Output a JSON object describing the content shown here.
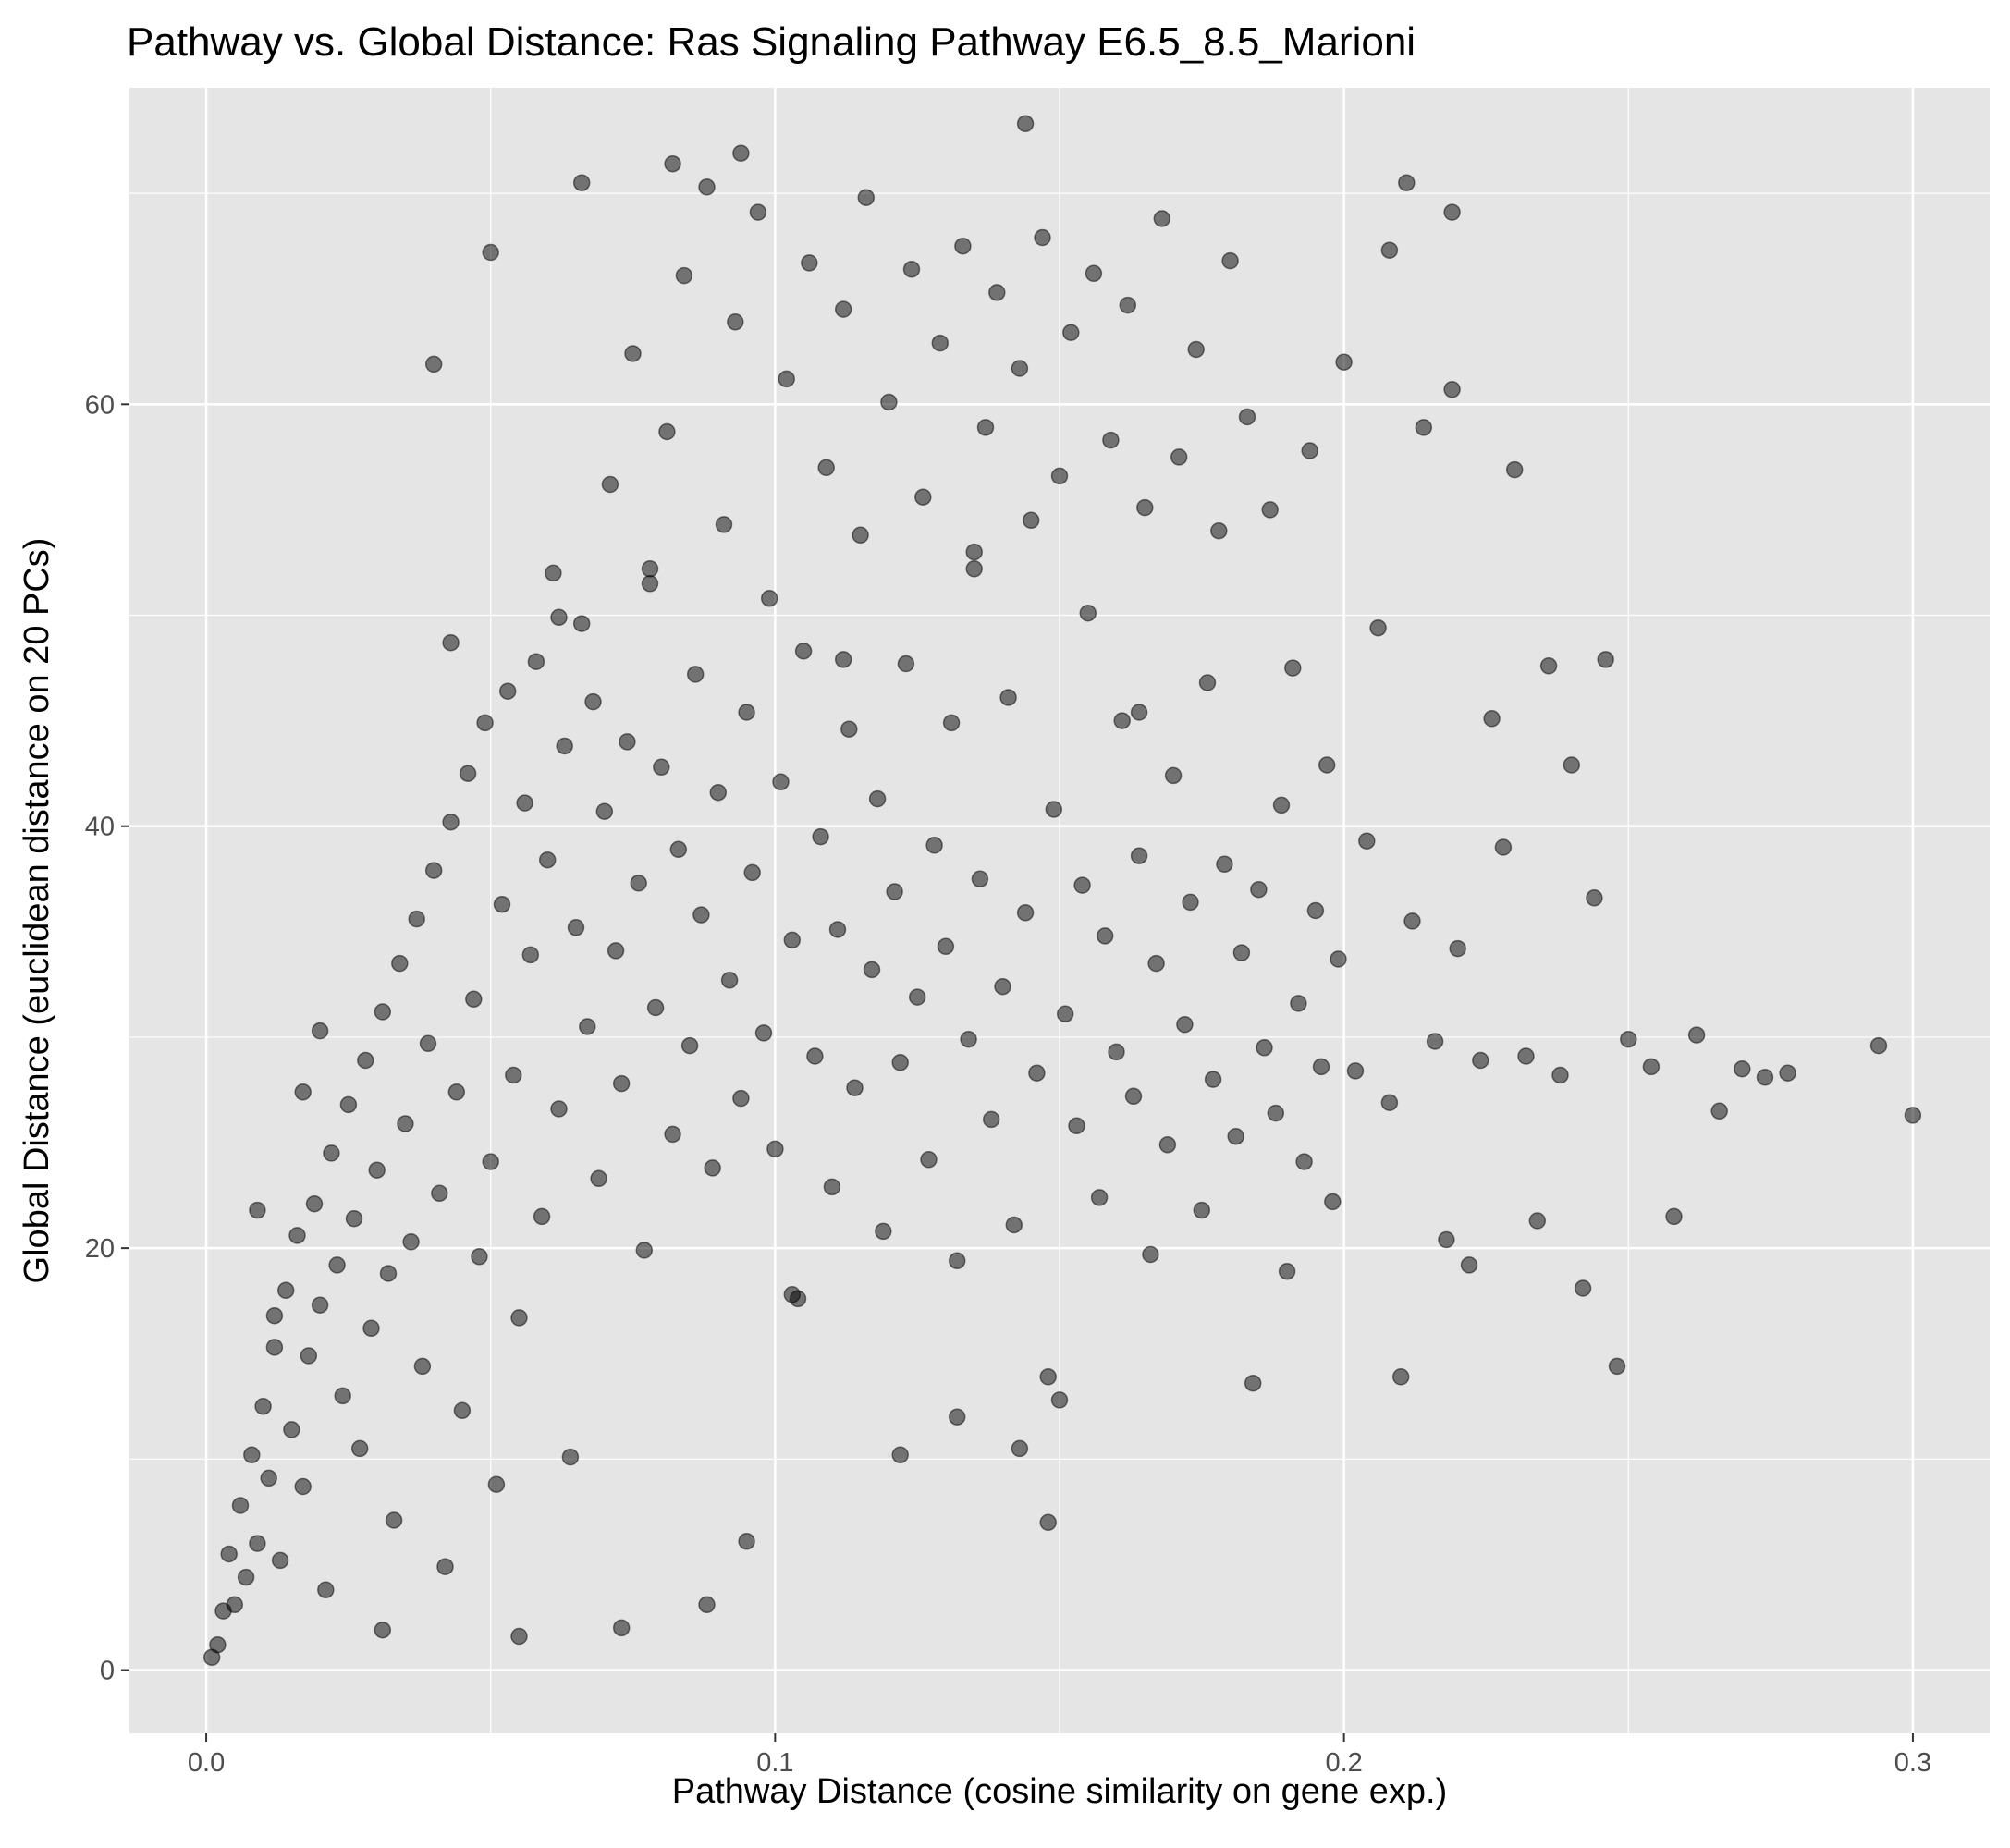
{
  "chart_data": {
    "type": "scatter",
    "title": "Pathway vs. Global Distance: Ras Signaling Pathway  E6.5_8.5_Marioni",
    "xlabel": "Pathway Distance (cosine similarity on gene exp.)",
    "ylabel": "Global Distance (euclidean distance on 20 PCs)",
    "xlim": [
      -0.0135,
      0.3135
    ],
    "ylim": [
      -3.0,
      75.0
    ],
    "x_ticks": [
      0.0,
      0.1,
      0.2,
      0.3
    ],
    "x_tick_labels": [
      "0.0",
      "0.1",
      "0.2",
      "0.3"
    ],
    "y_ticks": [
      0,
      20,
      40,
      60
    ],
    "y_tick_labels": [
      "0",
      "20",
      "40",
      "60"
    ],
    "x_minor_ticks": [
      0.05,
      0.15,
      0.25
    ],
    "y_minor_ticks": [
      10,
      30,
      50,
      70
    ],
    "grid": true,
    "legend": "none",
    "colors": {
      "panel_background": "#e5e5e5",
      "grid_line": "#ffffff",
      "point_fill": "#000000",
      "point_opacity": 0.5
    },
    "series": [
      {
        "points": [
          [
            0.001,
            0.6
          ],
          [
            0.002,
            1.2
          ],
          [
            0.003,
            2.8
          ],
          [
            0.004,
            5.5
          ],
          [
            0.005,
            3.1
          ],
          [
            0.006,
            7.8
          ],
          [
            0.007,
            4.4
          ],
          [
            0.008,
            10.2
          ],
          [
            0.009,
            6.0
          ],
          [
            0.01,
            12.5
          ],
          [
            0.011,
            9.1
          ],
          [
            0.012,
            15.3
          ],
          [
            0.013,
            5.2
          ],
          [
            0.014,
            18.0
          ],
          [
            0.015,
            11.4
          ],
          [
            0.016,
            20.6
          ],
          [
            0.017,
            8.7
          ],
          [
            0.018,
            14.9
          ],
          [
            0.019,
            22.1
          ],
          [
            0.02,
            17.3
          ],
          [
            0.021,
            3.8
          ],
          [
            0.022,
            24.5
          ],
          [
            0.023,
            19.2
          ],
          [
            0.024,
            13.0
          ],
          [
            0.025,
            26.8
          ],
          [
            0.026,
            21.4
          ],
          [
            0.027,
            10.5
          ],
          [
            0.028,
            28.9
          ],
          [
            0.029,
            16.2
          ],
          [
            0.03,
            23.7
          ],
          [
            0.031,
            31.2
          ],
          [
            0.032,
            18.8
          ],
          [
            0.033,
            7.1
          ],
          [
            0.034,
            33.5
          ],
          [
            0.035,
            25.9
          ],
          [
            0.036,
            20.3
          ],
          [
            0.037,
            35.6
          ],
          [
            0.038,
            14.4
          ],
          [
            0.039,
            29.7
          ],
          [
            0.04,
            37.9
          ],
          [
            0.041,
            22.6
          ],
          [
            0.042,
            4.9
          ],
          [
            0.043,
            40.2
          ],
          [
            0.044,
            27.4
          ],
          [
            0.045,
            12.3
          ],
          [
            0.046,
            42.5
          ],
          [
            0.047,
            31.8
          ],
          [
            0.048,
            19.6
          ],
          [
            0.049,
            44.9
          ],
          [
            0.05,
            24.1
          ],
          [
            0.051,
            8.8
          ],
          [
            0.052,
            36.3
          ],
          [
            0.053,
            46.4
          ],
          [
            0.054,
            28.2
          ],
          [
            0.055,
            16.7
          ],
          [
            0.056,
            41.1
          ],
          [
            0.057,
            33.9
          ],
          [
            0.058,
            47.8
          ],
          [
            0.059,
            21.5
          ],
          [
            0.06,
            38.4
          ],
          [
            0.061,
            52.0
          ],
          [
            0.062,
            26.6
          ],
          [
            0.063,
            43.8
          ],
          [
            0.064,
            10.1
          ],
          [
            0.065,
            35.2
          ],
          [
            0.066,
            49.6
          ],
          [
            0.067,
            30.5
          ],
          [
            0.068,
            45.9
          ],
          [
            0.069,
            23.3
          ],
          [
            0.07,
            40.7
          ],
          [
            0.071,
            56.2
          ],
          [
            0.072,
            34.1
          ],
          [
            0.073,
            27.8
          ],
          [
            0.074,
            44.0
          ],
          [
            0.075,
            62.4
          ],
          [
            0.076,
            37.3
          ],
          [
            0.077,
            19.9
          ],
          [
            0.078,
            51.5
          ],
          [
            0.079,
            31.4
          ],
          [
            0.08,
            42.8
          ],
          [
            0.081,
            58.7
          ],
          [
            0.082,
            25.4
          ],
          [
            0.083,
            38.9
          ],
          [
            0.084,
            66.1
          ],
          [
            0.085,
            29.6
          ],
          [
            0.086,
            47.2
          ],
          [
            0.087,
            35.8
          ],
          [
            0.088,
            70.3
          ],
          [
            0.089,
            23.8
          ],
          [
            0.09,
            41.6
          ],
          [
            0.091,
            54.3
          ],
          [
            0.092,
            32.7
          ],
          [
            0.093,
            63.9
          ],
          [
            0.094,
            27.1
          ],
          [
            0.095,
            45.4
          ],
          [
            0.096,
            37.8
          ],
          [
            0.097,
            69.1
          ],
          [
            0.098,
            30.2
          ],
          [
            0.099,
            50.8
          ],
          [
            0.1,
            24.7
          ],
          [
            0.101,
            42.1
          ],
          [
            0.102,
            61.2
          ],
          [
            0.103,
            34.6
          ],
          [
            0.104,
            17.6
          ],
          [
            0.105,
            48.3
          ],
          [
            0.106,
            66.7
          ],
          [
            0.107,
            29.1
          ],
          [
            0.108,
            39.5
          ],
          [
            0.109,
            57.0
          ],
          [
            0.11,
            22.9
          ],
          [
            0.111,
            35.1
          ],
          [
            0.112,
            64.5
          ],
          [
            0.113,
            44.6
          ],
          [
            0.114,
            27.6
          ],
          [
            0.115,
            53.8
          ],
          [
            0.116,
            69.8
          ],
          [
            0.117,
            33.2
          ],
          [
            0.118,
            41.3
          ],
          [
            0.119,
            20.8
          ],
          [
            0.12,
            60.1
          ],
          [
            0.121,
            36.9
          ],
          [
            0.122,
            28.8
          ],
          [
            0.123,
            47.7
          ],
          [
            0.124,
            66.4
          ],
          [
            0.125,
            31.9
          ],
          [
            0.126,
            55.6
          ],
          [
            0.127,
            24.2
          ],
          [
            0.128,
            39.1
          ],
          [
            0.129,
            62.9
          ],
          [
            0.13,
            34.3
          ],
          [
            0.131,
            44.9
          ],
          [
            0.132,
            19.4
          ],
          [
            0.133,
            67.5
          ],
          [
            0.134,
            29.9
          ],
          [
            0.135,
            52.2
          ],
          [
            0.136,
            37.5
          ],
          [
            0.137,
            58.9
          ],
          [
            0.138,
            26.1
          ],
          [
            0.139,
            65.3
          ],
          [
            0.14,
            32.4
          ],
          [
            0.141,
            46.1
          ],
          [
            0.142,
            21.1
          ],
          [
            0.143,
            61.7
          ],
          [
            0.144,
            35.9
          ],
          [
            0.145,
            54.5
          ],
          [
            0.146,
            28.3
          ],
          [
            0.147,
            67.9
          ],
          [
            0.148,
            13.9
          ],
          [
            0.149,
            40.8
          ],
          [
            0.15,
            56.6
          ],
          [
            0.151,
            31.1
          ],
          [
            0.152,
            63.4
          ],
          [
            0.153,
            25.8
          ],
          [
            0.154,
            37.2
          ],
          [
            0.155,
            50.1
          ],
          [
            0.156,
            66.2
          ],
          [
            0.157,
            22.4
          ],
          [
            0.158,
            34.8
          ],
          [
            0.159,
            58.3
          ],
          [
            0.16,
            29.3
          ],
          [
            0.161,
            45.0
          ],
          [
            0.162,
            64.7
          ],
          [
            0.163,
            27.2
          ],
          [
            0.164,
            38.6
          ],
          [
            0.165,
            55.1
          ],
          [
            0.166,
            19.7
          ],
          [
            0.167,
            33.5
          ],
          [
            0.168,
            68.8
          ],
          [
            0.169,
            24.9
          ],
          [
            0.17,
            42.4
          ],
          [
            0.171,
            57.5
          ],
          [
            0.172,
            30.6
          ],
          [
            0.173,
            36.4
          ],
          [
            0.174,
            62.6
          ],
          [
            0.175,
            21.8
          ],
          [
            0.176,
            46.8
          ],
          [
            0.177,
            28.0
          ],
          [
            0.178,
            54.0
          ],
          [
            0.179,
            38.2
          ],
          [
            0.18,
            66.8
          ],
          [
            0.181,
            25.3
          ],
          [
            0.182,
            34.0
          ],
          [
            0.183,
            59.4
          ],
          [
            0.184,
            13.6
          ],
          [
            0.185,
            37.0
          ],
          [
            0.186,
            29.5
          ],
          [
            0.187,
            55.0
          ],
          [
            0.188,
            26.4
          ],
          [
            0.189,
            41.0
          ],
          [
            0.19,
            18.9
          ],
          [
            0.191,
            47.5
          ],
          [
            0.192,
            31.6
          ],
          [
            0.193,
            24.1
          ],
          [
            0.194,
            57.8
          ],
          [
            0.195,
            36.0
          ],
          [
            0.196,
            28.6
          ],
          [
            0.197,
            42.9
          ],
          [
            0.198,
            22.2
          ],
          [
            0.199,
            33.7
          ],
          [
            0.2,
            62.0
          ],
          [
            0.202,
            28.4
          ],
          [
            0.204,
            39.3
          ],
          [
            0.206,
            49.4
          ],
          [
            0.208,
            26.9
          ],
          [
            0.21,
            13.9
          ],
          [
            0.212,
            35.5
          ],
          [
            0.214,
            58.9
          ],
          [
            0.216,
            29.8
          ],
          [
            0.218,
            20.4
          ],
          [
            0.219,
            60.7
          ],
          [
            0.22,
            34.2
          ],
          [
            0.222,
            19.2
          ],
          [
            0.224,
            28.9
          ],
          [
            0.226,
            45.1
          ],
          [
            0.228,
            39.0
          ],
          [
            0.23,
            56.9
          ],
          [
            0.232,
            29.1
          ],
          [
            0.234,
            21.3
          ],
          [
            0.236,
            47.6
          ],
          [
            0.238,
            28.2
          ],
          [
            0.24,
            42.9
          ],
          [
            0.242,
            18.1
          ],
          [
            0.244,
            36.6
          ],
          [
            0.246,
            47.9
          ],
          [
            0.248,
            14.4
          ],
          [
            0.25,
            29.9
          ],
          [
            0.254,
            28.6
          ],
          [
            0.258,
            21.5
          ],
          [
            0.262,
            30.1
          ],
          [
            0.266,
            26.5
          ],
          [
            0.27,
            28.5
          ],
          [
            0.274,
            28.1
          ],
          [
            0.278,
            28.3
          ],
          [
            0.294,
            29.6
          ],
          [
            0.3,
            26.3
          ],
          [
            0.211,
            70.5
          ],
          [
            0.219,
            69.1
          ],
          [
            0.208,
            67.3
          ],
          [
            0.144,
            73.3
          ],
          [
            0.082,
            71.4
          ],
          [
            0.094,
            71.9
          ],
          [
            0.066,
            70.5
          ],
          [
            0.04,
            61.9
          ],
          [
            0.05,
            67.2
          ],
          [
            0.148,
            7.0
          ],
          [
            0.095,
            6.1
          ],
          [
            0.031,
            1.9
          ],
          [
            0.055,
            1.6
          ],
          [
            0.073,
            2.0
          ],
          [
            0.088,
            3.1
          ],
          [
            0.009,
            21.8
          ],
          [
            0.012,
            16.8
          ],
          [
            0.017,
            27.4
          ],
          [
            0.02,
            30.3
          ],
          [
            0.043,
            48.7
          ],
          [
            0.062,
            49.9
          ],
          [
            0.078,
            52.2
          ],
          [
            0.112,
            47.9
          ],
          [
            0.135,
            53.0
          ],
          [
            0.164,
            45.4
          ],
          [
            0.103,
            17.8
          ],
          [
            0.122,
            10.2
          ],
          [
            0.132,
            12.0
          ],
          [
            0.143,
            10.5
          ],
          [
            0.15,
            12.8
          ]
        ]
      }
    ]
  }
}
